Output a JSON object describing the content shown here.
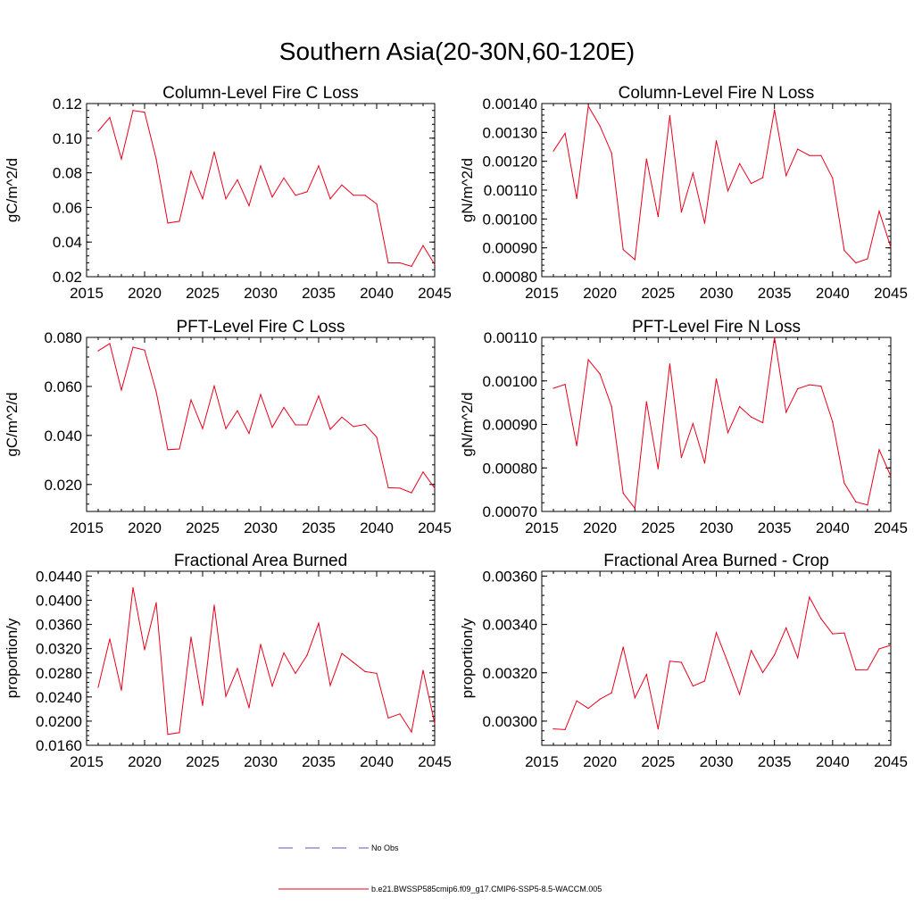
{
  "figure": {
    "title": "Southern Asia(20-30N,60-120E)",
    "line_color": "#e8001c",
    "obs_color": "#5a5ab4"
  },
  "legend": {
    "obs_label": "No Obs",
    "model_label": "b.e21.BWSSP585cmip6.f09_g17.CMIP6-SSP5-8.5-WACCM.005"
  },
  "chart_data": [
    {
      "id": "col-fire-c",
      "type": "line",
      "title": "Column-Level Fire C Loss",
      "ylabel": "gC/m^2/d",
      "xlabel": "",
      "xlim": [
        2015,
        2045
      ],
      "ylim": [
        0.02,
        0.12
      ],
      "xticks": [
        "2015",
        "2020",
        "2025",
        "2030",
        "2035",
        "2040",
        "2045"
      ],
      "yticks": [
        "0.02",
        "0.04",
        "0.06",
        "0.08",
        "0.10",
        "0.12"
      ],
      "x": [
        2016,
        2017,
        2018,
        2019,
        2020,
        2021,
        2022,
        2023,
        2024,
        2025,
        2026,
        2027,
        2028,
        2029,
        2030,
        2031,
        2032,
        2033,
        2034,
        2035,
        2036,
        2037,
        2038,
        2039,
        2040,
        2041,
        2042,
        2043,
        2044,
        2045
      ],
      "values": [
        0.104,
        0.112,
        0.088,
        0.116,
        0.115,
        0.088,
        0.051,
        0.052,
        0.081,
        0.065,
        0.092,
        0.065,
        0.076,
        0.061,
        0.084,
        0.066,
        0.077,
        0.067,
        0.069,
        0.084,
        0.065,
        0.073,
        0.067,
        0.067,
        0.062,
        0.028,
        0.028,
        0.026,
        0.038,
        0.027
      ]
    },
    {
      "id": "col-fire-n",
      "type": "line",
      "title": "Column-Level Fire N Loss",
      "ylabel": "gN/m^2/d",
      "xlabel": "",
      "xlim": [
        2015,
        2045
      ],
      "ylim": [
        0.0008,
        0.0014
      ],
      "xticks": [
        "2015",
        "2020",
        "2025",
        "2030",
        "2035",
        "2040",
        "2045"
      ],
      "yticks": [
        "0.00080",
        "0.00090",
        "0.00100",
        "0.00110",
        "0.00120",
        "0.00130",
        "0.00140"
      ],
      "x": [
        2016,
        2017,
        2018,
        2019,
        2020,
        2021,
        2022,
        2023,
        2024,
        2025,
        2026,
        2027,
        2028,
        2029,
        2030,
        2031,
        2032,
        2033,
        2034,
        2035,
        2036,
        2037,
        2038,
        2039,
        2040,
        2041,
        2042,
        2043,
        2044,
        2045
      ],
      "values": [
        0.001235,
        0.001297,
        0.001071,
        0.001391,
        0.001322,
        0.001228,
        0.000894,
        0.000859,
        0.001208,
        0.001008,
        0.001358,
        0.001024,
        0.001159,
        0.000985,
        0.001271,
        0.001097,
        0.001192,
        0.001123,
        0.001143,
        0.001378,
        0.00115,
        0.001242,
        0.00122,
        0.00122,
        0.001141,
        0.000891,
        0.000848,
        0.000862,
        0.001027,
        0.000902
      ]
    },
    {
      "id": "pft-fire-c",
      "type": "line",
      "title": "PFT-Level Fire C Loss",
      "ylabel": "gC/m^2/d",
      "xlabel": "",
      "xlim": [
        2015,
        2045
      ],
      "ylim": [
        0.009,
        0.08
      ],
      "xticks": [
        "2015",
        "2020",
        "2025",
        "2030",
        "2035",
        "2040",
        "2045"
      ],
      "yticks": [
        "0.020",
        "0.040",
        "0.060",
        "0.080"
      ],
      "x": [
        2016,
        2017,
        2018,
        2019,
        2020,
        2021,
        2022,
        2023,
        2024,
        2025,
        2026,
        2027,
        2028,
        2029,
        2030,
        2031,
        2032,
        2033,
        2034,
        2035,
        2036,
        2037,
        2038,
        2039,
        2040,
        2041,
        2042,
        2043,
        2044,
        2045
      ],
      "values": [
        0.0745,
        0.0775,
        0.0585,
        0.076,
        0.0748,
        0.0578,
        0.0342,
        0.0345,
        0.0545,
        0.0428,
        0.0602,
        0.0428,
        0.0501,
        0.0408,
        0.0567,
        0.0433,
        0.0514,
        0.0443,
        0.0443,
        0.0561,
        0.0425,
        0.0475,
        0.0436,
        0.0445,
        0.0393,
        0.0187,
        0.0185,
        0.0166,
        0.0251,
        0.0185
      ]
    },
    {
      "id": "pft-fire-n",
      "type": "line",
      "title": "PFT-Level Fire N Loss",
      "ylabel": "gN/m^2/d",
      "xlabel": "",
      "xlim": [
        2015,
        2045
      ],
      "ylim": [
        0.0007,
        0.0011
      ],
      "xticks": [
        "2015",
        "2020",
        "2025",
        "2030",
        "2035",
        "2040",
        "2045"
      ],
      "yticks": [
        "0.00070",
        "0.00080",
        "0.00090",
        "0.00100",
        "0.00110"
      ],
      "x": [
        2016,
        2017,
        2018,
        2019,
        2020,
        2021,
        2022,
        2023,
        2024,
        2025,
        2026,
        2027,
        2028,
        2029,
        2030,
        2031,
        2032,
        2033,
        2034,
        2035,
        2036,
        2037,
        2038,
        2039,
        2040,
        2041,
        2042,
        2043,
        2044,
        2045
      ],
      "values": [
        0.000983,
        0.000992,
        0.000851,
        0.001049,
        0.001016,
        0.000941,
        0.000742,
        0.000707,
        0.000952,
        0.000798,
        0.001039,
        0.000824,
        0.000902,
        0.000811,
        0.001005,
        0.000881,
        0.000941,
        0.000917,
        0.000904,
        0.0011,
        0.000928,
        0.000982,
        0.000991,
        0.000988,
        0.000906,
        0.000765,
        0.000722,
        0.000715,
        0.000842,
        0.000781
      ]
    },
    {
      "id": "frac-area-burned",
      "type": "line",
      "title": "Fractional Area Burned",
      "ylabel": "proportion/y",
      "xlabel": "",
      "xlim": [
        2015,
        2045
      ],
      "ylim": [
        0.016,
        0.0448
      ],
      "xticks": [
        "2015",
        "2020",
        "2025",
        "2030",
        "2035",
        "2040",
        "2045"
      ],
      "yticks": [
        "0.0160",
        "0.0200",
        "0.0240",
        "0.0280",
        "0.0320",
        "0.0360",
        "0.0400",
        "0.0440"
      ],
      "x": [
        2016,
        2017,
        2018,
        2019,
        2020,
        2021,
        2022,
        2023,
        2024,
        2025,
        2026,
        2027,
        2028,
        2029,
        2030,
        2031,
        2032,
        2033,
        2034,
        2035,
        2036,
        2037,
        2038,
        2039,
        2040,
        2041,
        2042,
        2043,
        2044,
        2045
      ],
      "values": [
        0.0256,
        0.0336,
        0.0251,
        0.0421,
        0.0318,
        0.0396,
        0.0178,
        0.0181,
        0.0339,
        0.0226,
        0.0392,
        0.0241,
        0.0287,
        0.0222,
        0.0327,
        0.0258,
        0.0313,
        0.0279,
        0.0309,
        0.0362,
        0.0259,
        0.0312,
        0.0297,
        0.0282,
        0.0279,
        0.0205,
        0.0212,
        0.0182,
        0.0284,
        0.0196
      ]
    },
    {
      "id": "frac-area-burned-crop",
      "type": "line",
      "title": "Fractional Area Burned - Crop",
      "ylabel": "proportion/y",
      "xlabel": "",
      "xlim": [
        2015,
        2045
      ],
      "ylim": [
        0.0029,
        0.00362
      ],
      "xticks": [
        "2015",
        "2020",
        "2025",
        "2030",
        "2035",
        "2040",
        "2045"
      ],
      "yticks": [
        "0.00300",
        "0.00320",
        "0.00340",
        "0.00360"
      ],
      "x": [
        2016,
        2017,
        2018,
        2019,
        2020,
        2021,
        2022,
        2023,
        2024,
        2025,
        2026,
        2027,
        2028,
        2029,
        2030,
        2031,
        2032,
        2033,
        2034,
        2035,
        2036,
        2037,
        2038,
        2039,
        2040,
        2041,
        2042,
        2043,
        2044,
        2045
      ],
      "values": [
        0.002968,
        0.002965,
        0.003084,
        0.003053,
        0.003091,
        0.003117,
        0.003306,
        0.003096,
        0.003193,
        0.002968,
        0.003248,
        0.003243,
        0.003145,
        0.003166,
        0.003366,
        0.003241,
        0.003111,
        0.003292,
        0.003201,
        0.003274,
        0.003386,
        0.003262,
        0.003513,
        0.003424,
        0.003361,
        0.003365,
        0.003212,
        0.003213,
        0.003299,
        0.003314
      ]
    }
  ]
}
